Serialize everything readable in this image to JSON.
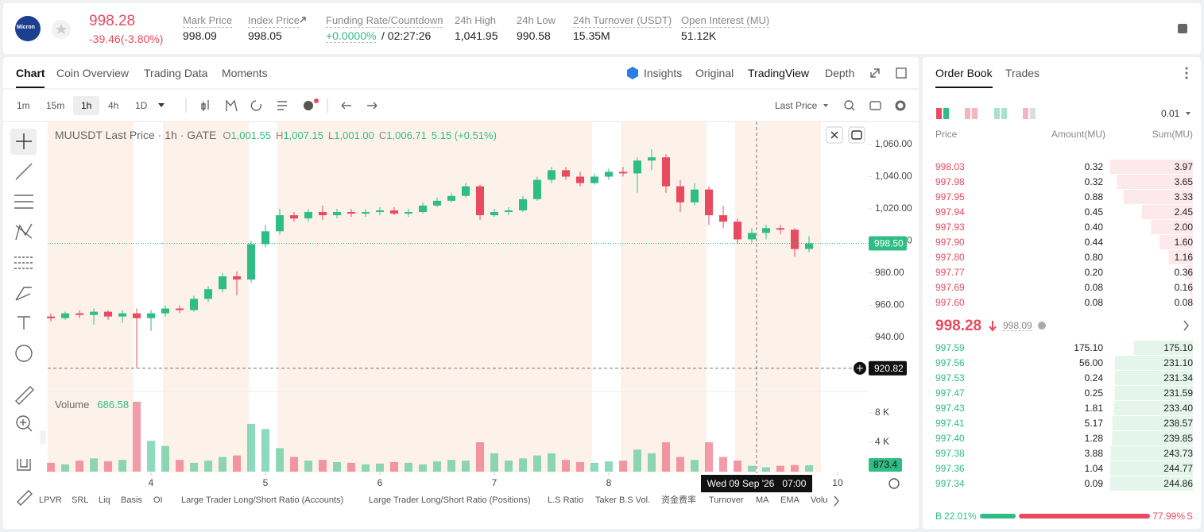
{
  "header": {
    "logo": "Micron",
    "price": "998.28",
    "change": "-39.46(-3.80%)",
    "stats": [
      {
        "label": "Mark Price",
        "value": "998.09"
      },
      {
        "label": "Index Price",
        "value": "998.05"
      },
      {
        "label": "Funding Rate/Countdown",
        "value": "+0.0000%",
        "countdown": "/ 02:27:26"
      },
      {
        "label": "24h High",
        "value": "1,041.95"
      },
      {
        "label": "24h Low",
        "value": "990.58"
      },
      {
        "label": "24h Turnover (USDT)",
        "value": "15.35M"
      },
      {
        "label": "Open Interest (MU)",
        "value": "51.12K"
      }
    ]
  },
  "tabs": [
    "Chart",
    "Coin Overview",
    "Trading Data",
    "Moments"
  ],
  "views": [
    "Insights",
    "Original",
    "TradingView",
    "Depth"
  ],
  "intervals": [
    "1m",
    "15m",
    "1h",
    "4h",
    "1D"
  ],
  "price_source": "Last Price",
  "indicators": [
    "LPVR",
    "SRL",
    "Liq",
    "Basis",
    "OI",
    "Large Trader Long/Short Ratio (Accounts)",
    "Large Trader Long/Short Ratio (Positions)",
    "L.S Ratio",
    "Taker B.S Vol.",
    "资金费率",
    "Turnover",
    "MA",
    "EMA",
    "Volume"
  ],
  "chart_data": {
    "type": "candlestick",
    "title": "MUUSDT Last Price · 1h · GATE",
    "legend": [
      {
        "k": "O",
        "v": "1,001.55"
      },
      {
        "k": "H",
        "v": "1,007.15"
      },
      {
        "k": "L",
        "v": "1,001.00"
      },
      {
        "k": "C",
        "v": "1,006.71"
      }
    ],
    "change": "5.15 (+0.51%)",
    "colors": {
      "up": "#2ebd85",
      "down": "#e84a5f"
    },
    "x": [
      3.125,
      3.25,
      3.375,
      3.5,
      3.625,
      3.75,
      3.875,
      4,
      4.125,
      4.25,
      4.375,
      4.5,
      4.625,
      4.75,
      4.875,
      5,
      5.125,
      5.25,
      5.375,
      5.5,
      5.625,
      5.75,
      5.875,
      6,
      6.125,
      6.25,
      6.375,
      6.5,
      6.625,
      6.75,
      6.875,
      7,
      7.125,
      7.25,
      7.375,
      7.5,
      7.625,
      7.75,
      7.875,
      8,
      8.125,
      8.25,
      8.375,
      8.5,
      8.625,
      8.75,
      8.875,
      9,
      9.125,
      9.25,
      9.375,
      9.5,
      9.625,
      9.75
    ],
    "open": [
      953,
      952,
      955,
      954,
      956,
      953,
      955,
      952,
      955,
      958,
      957,
      964,
      970,
      978,
      976,
      998,
      1006,
      1016,
      1014,
      1018,
      1016,
      1018,
      1017,
      1018,
      1019,
      1017,
      1018,
      1022,
      1025,
      1028,
      1034,
      1016,
      1018,
      1019,
      1026,
      1038,
      1044,
      1040,
      1036,
      1040,
      1043,
      1042,
      1050,
      1052,
      1034,
      1024,
      1032,
      1016,
      1012,
      1001,
      1005,
      1008,
      1007,
      995
    ],
    "high": [
      955,
      956,
      957,
      958,
      957,
      957,
      958,
      957,
      960,
      960,
      966,
      972,
      980,
      981,
      1000,
      1010,
      1020,
      1018,
      1020,
      1022,
      1020,
      1020,
      1020,
      1021,
      1021,
      1020,
      1024,
      1027,
      1030,
      1036,
      1035,
      1020,
      1021,
      1028,
      1040,
      1046,
      1046,
      1043,
      1042,
      1045,
      1046,
      1052,
      1057,
      1054,
      1038,
      1036,
      1034,
      1022,
      1014,
      1008,
      1010,
      1010,
      1008,
      1003
    ],
    "low": [
      950,
      951,
      952,
      948,
      951,
      949,
      921,
      944,
      953,
      955,
      956,
      962,
      968,
      966,
      974,
      996,
      1004,
      1012,
      1012,
      1013,
      1014,
      1015,
      1015,
      1016,
      1016,
      1015,
      1017,
      1021,
      1024,
      1027,
      1013,
      1015,
      1016,
      1018,
      1025,
      1036,
      1038,
      1034,
      1035,
      1038,
      1040,
      1030,
      1044,
      1030,
      1018,
      1022,
      1010,
      1008,
      998,
      999,
      1001,
      1004,
      990,
      993
    ],
    "close": [
      952,
      955,
      954,
      956,
      953,
      955,
      952,
      955,
      958,
      957,
      964,
      970,
      978,
      976,
      998,
      1006,
      1016,
      1014,
      1018,
      1016,
      1018,
      1017,
      1018,
      1019,
      1017,
      1018,
      1022,
      1025,
      1028,
      1034,
      1016,
      1018,
      1019,
      1026,
      1038,
      1044,
      1040,
      1036,
      1040,
      1043,
      1042,
      1050,
      1052,
      1034,
      1024,
      1032,
      1016,
      1012,
      1001,
      1005,
      1008,
      1007,
      995,
      998.5
    ],
    "xlim": [
      3.097,
      10.271
    ],
    "xticks": [
      4,
      5,
      6,
      7,
      8,
      10
    ],
    "ylim": [
      906.9,
      1074.3
    ],
    "yticks": [
      {
        "value": 940,
        "label": "940.00"
      },
      {
        "value": 960,
        "label": "960.00"
      },
      {
        "value": 980,
        "label": "980.00"
      },
      {
        "value": 1000,
        "label": "1,000.00"
      },
      {
        "value": 1020,
        "label": "1,020.00"
      },
      {
        "value": 1040,
        "label": "1,040.00"
      },
      {
        "value": 1060,
        "label": "1,060.00"
      }
    ],
    "last_price": {
      "value": 998.5,
      "label": "998.50"
    },
    "crosshair": {
      "x": 9.2917,
      "y": 920.82,
      "x_label": "Wed 09 Sep '26   07:00"
    },
    "volume": {
      "title": "Volume",
      "hover": "686.58",
      "values": [
        1200,
        1000,
        1500,
        1800,
        1400,
        1600,
        9500,
        4200,
        3500,
        1600,
        1200,
        1500,
        2000,
        2200,
        6500,
        5800,
        3200,
        2000,
        1500,
        1600,
        1300,
        1200,
        1000,
        1100,
        1300,
        1200,
        1000,
        1400,
        1600,
        1500,
        4000,
        2500,
        1500,
        1800,
        2200,
        2500,
        1600,
        1300,
        1200,
        1400,
        1500,
        3000,
        2500,
        4000,
        2000,
        1600,
        4000,
        2000,
        1500,
        800,
        600,
        800,
        900,
        873.4
      ],
      "ylim": [
        0,
        10800
      ],
      "yticks": [
        {
          "value": 4000,
          "label": "4 K"
        },
        {
          "value": 8000,
          "label": "8 K"
        }
      ]
    }
  },
  "order_book": {
    "tabs": [
      "Order Book",
      "Trades"
    ],
    "tick_size": "0.01",
    "headers": [
      "Price",
      "Amount(MU)",
      "Sum(MU)"
    ],
    "asks": [
      [
        "998.03",
        "0.32",
        "3.97"
      ],
      [
        "997.98",
        "0.32",
        "3.65"
      ],
      [
        "997.95",
        "0.88",
        "3.33"
      ],
      [
        "997.94",
        "0.45",
        "2.45"
      ],
      [
        "997.93",
        "0.40",
        "2.00"
      ],
      [
        "997.90",
        "0.44",
        "1.60"
      ],
      [
        "997.80",
        "0.80",
        "1.16"
      ],
      [
        "997.77",
        "0.20",
        "0.36"
      ],
      [
        "997.69",
        "0.08",
        "0.16"
      ],
      [
        "997.60",
        "0.08",
        "0.08"
      ]
    ],
    "mid_price": "998.28",
    "mark_price": "998.09",
    "bids": [
      [
        "997.59",
        "175.10",
        "175.10"
      ],
      [
        "997.56",
        "56.00",
        "231.10"
      ],
      [
        "997.53",
        "0.24",
        "231.34"
      ],
      [
        "997.47",
        "0.25",
        "231.59"
      ],
      [
        "997.43",
        "1.81",
        "233.40"
      ],
      [
        "997.41",
        "5.17",
        "238.57"
      ],
      [
        "997.40",
        "1.28",
        "239.85"
      ],
      [
        "997.38",
        "3.88",
        "243.73"
      ],
      [
        "997.36",
        "1.04",
        "244.77"
      ],
      [
        "997.34",
        "0.09",
        "244.86"
      ]
    ],
    "buy_label": "B",
    "sell_label": "S",
    "buy_ratio": {
      "value": 22.01,
      "label": "22.01%"
    },
    "sell_ratio": {
      "value": 77.99,
      "label": "77.99%"
    }
  }
}
